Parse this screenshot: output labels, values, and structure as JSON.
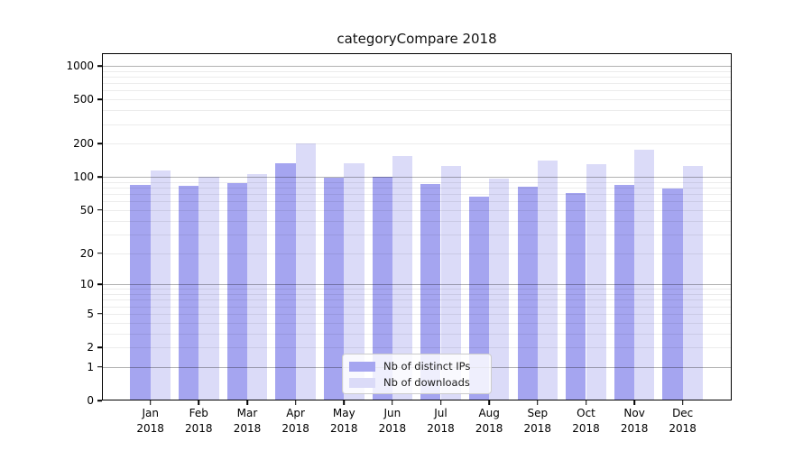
{
  "title": "categoryCompare 2018",
  "chart_data": {
    "type": "bar",
    "title": "categoryCompare 2018",
    "xlabel": "",
    "ylabel": "",
    "yscale": "log1p",
    "grid": true,
    "legend_position": "lower center",
    "ylim": [
      0,
      1300
    ],
    "y_ticks": [
      0,
      1,
      2,
      5,
      10,
      20,
      50,
      100,
      200,
      500,
      1000
    ],
    "y_minor_gridlines": [
      2,
      3,
      4,
      5,
      6,
      7,
      8,
      9,
      20,
      30,
      40,
      50,
      60,
      70,
      80,
      90,
      200,
      300,
      400,
      500,
      600,
      700,
      800,
      900
    ],
    "y_major_gridlines": [
      1,
      10,
      100,
      1000
    ],
    "categories": [
      "Jan 2018",
      "Feb 2018",
      "Mar 2018",
      "Apr 2018",
      "May 2018",
      "Jun 2018",
      "Jul 2018",
      "Aug 2018",
      "Sep 2018",
      "Oct 2018",
      "Nov 2018",
      "Dec 2018"
    ],
    "series": [
      {
        "name": "Nb of distinct IPs",
        "color": "#a5a5f0",
        "values": [
          85,
          83,
          88,
          132,
          99,
          101,
          86,
          66,
          81,
          71,
          84,
          79
        ]
      },
      {
        "name": "Nb of downloads",
        "color": "#dbdbf8",
        "values": [
          115,
          101,
          107,
          200,
          134,
          156,
          125,
          97,
          140,
          130,
          175,
          126
        ]
      }
    ]
  },
  "legend": {
    "item1": "Nb of distinct IPs",
    "item2": "Nb of downloads"
  }
}
